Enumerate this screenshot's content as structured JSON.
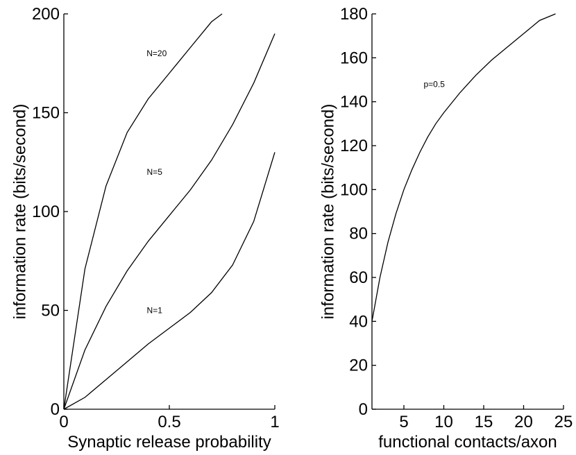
{
  "chart_data": [
    {
      "type": "line",
      "xlabel": "Synaptic release probability",
      "ylabel": "information rate (bits/second)",
      "xlim": [
        0,
        1
      ],
      "ylim": [
        0,
        200
      ],
      "xticks": [
        0,
        0.5,
        1
      ],
      "xtick_labels": [
        "0",
        "0.5",
        "1"
      ],
      "yticks": [
        0,
        50,
        100,
        150,
        200
      ],
      "ytick_labels": [
        "0",
        "50",
        "100",
        "150",
        "200"
      ],
      "grid": false,
      "series": [
        {
          "name": "N=20",
          "x": [
            0,
            0.1,
            0.2,
            0.3,
            0.4,
            0.5,
            0.6,
            0.7,
            0.75
          ],
          "y": [
            0,
            71,
            113,
            140,
            157,
            170,
            183,
            196,
            200
          ],
          "label_at": [
            0.44,
            180
          ]
        },
        {
          "name": "N=5",
          "x": [
            0,
            0.1,
            0.2,
            0.3,
            0.4,
            0.5,
            0.6,
            0.7,
            0.8,
            0.9,
            1.0
          ],
          "y": [
            0,
            30,
            52,
            70,
            85,
            98,
            111,
            126,
            144,
            165,
            190
          ],
          "label_at": [
            0.43,
            120
          ]
        },
        {
          "name": "N=1",
          "x": [
            0,
            0.1,
            0.2,
            0.3,
            0.4,
            0.5,
            0.6,
            0.7,
            0.8,
            0.9,
            1.0
          ],
          "y": [
            0,
            6,
            15,
            24,
            33,
            41,
            49,
            59,
            73,
            95,
            130
          ],
          "label_at": [
            0.43,
            50
          ]
        }
      ]
    },
    {
      "type": "line",
      "xlabel": "functional contacts/axon",
      "ylabel": "information rate (bits/second)",
      "xlim": [
        1,
        25
      ],
      "ylim": [
        0,
        180
      ],
      "xticks": [
        5,
        10,
        15,
        20,
        25
      ],
      "xtick_labels": [
        "5",
        "10",
        "15",
        "20",
        "25"
      ],
      "yticks": [
        0,
        20,
        40,
        60,
        80,
        100,
        120,
        140,
        160,
        180
      ],
      "ytick_labels": [
        "0",
        "20",
        "40",
        "60",
        "80",
        "100",
        "120",
        "140",
        "160",
        "180"
      ],
      "grid": false,
      "series": [
        {
          "name": "p=0.5",
          "x": [
            1,
            2,
            3,
            4,
            5,
            6,
            7,
            8,
            9,
            10,
            12,
            14,
            16,
            18,
            20,
            22,
            24
          ],
          "y": [
            40,
            60,
            76,
            89,
            100,
            109,
            117,
            124,
            130,
            135,
            144,
            152,
            159,
            165,
            171,
            177,
            180
          ],
          "label_at": [
            8.8,
            148
          ]
        }
      ]
    }
  ]
}
